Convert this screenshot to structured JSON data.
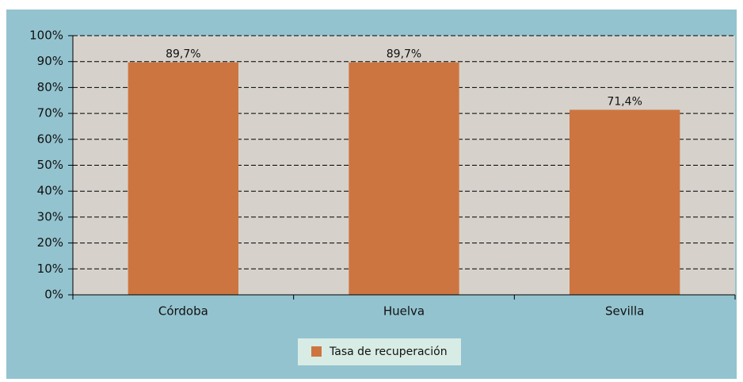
{
  "chart_data": {
    "type": "bar",
    "categories": [
      "Córdoba",
      "Huelva",
      "Sevilla"
    ],
    "series": [
      {
        "name": "Tasa de recuperación",
        "color": "#cd7540",
        "values": [
          89.7,
          89.7,
          71.4
        ],
        "value_labels": [
          "89,7%",
          "89,7%",
          "71,4%"
        ]
      }
    ],
    "ylim": [
      0,
      100
    ],
    "yticks": [
      {
        "value": 0,
        "label": "0%"
      },
      {
        "value": 10,
        "label": "10%"
      },
      {
        "value": 20,
        "label": "20%"
      },
      {
        "value": 30,
        "label": "30%"
      },
      {
        "value": 40,
        "label": "40%"
      },
      {
        "value": 50,
        "label": "50%"
      },
      {
        "value": 60,
        "label": "60%"
      },
      {
        "value": 70,
        "label": "70%"
      },
      {
        "value": 80,
        "label": "80%"
      },
      {
        "value": 90,
        "label": "90%"
      },
      {
        "value": 100,
        "label": "100%"
      }
    ],
    "grid": true,
    "legend": "bottom"
  }
}
